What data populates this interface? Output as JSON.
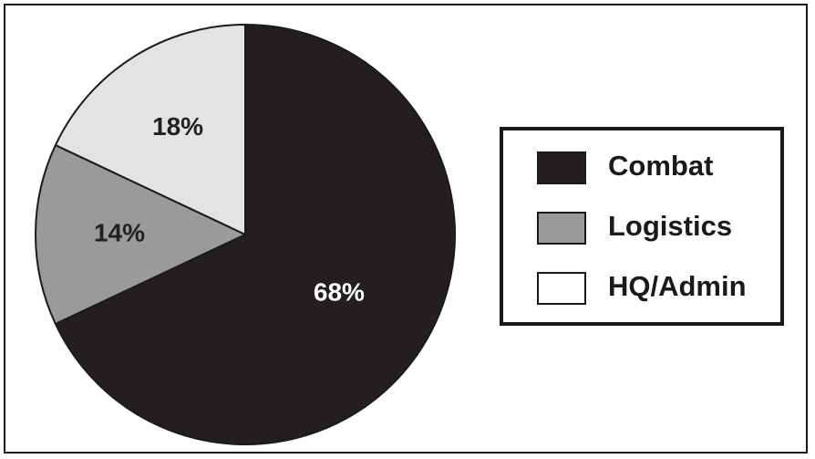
{
  "chart_data": {
    "type": "pie",
    "title": "",
    "slices": [
      {
        "label": "Combat",
        "value": 68,
        "display": "68%",
        "color": "#231f20",
        "text_color": "#ffffff"
      },
      {
        "label": "Logistics",
        "value": 14,
        "display": "14%",
        "color": "#9a9a9a",
        "text_color": "#231f20"
      },
      {
        "label": "HQ/Admin",
        "value": 18,
        "display": "18%",
        "color": "#e3e3e3",
        "text_color": "#231f20"
      }
    ],
    "legend": {
      "placement": "right",
      "entries": [
        "Combat",
        "Logistics",
        "HQ/Admin"
      ],
      "swatch_colors": [
        "#231f20",
        "#9a9a9a",
        "#ffffff"
      ]
    },
    "start_angle": "12 o'clock",
    "direction": "clockwise"
  }
}
